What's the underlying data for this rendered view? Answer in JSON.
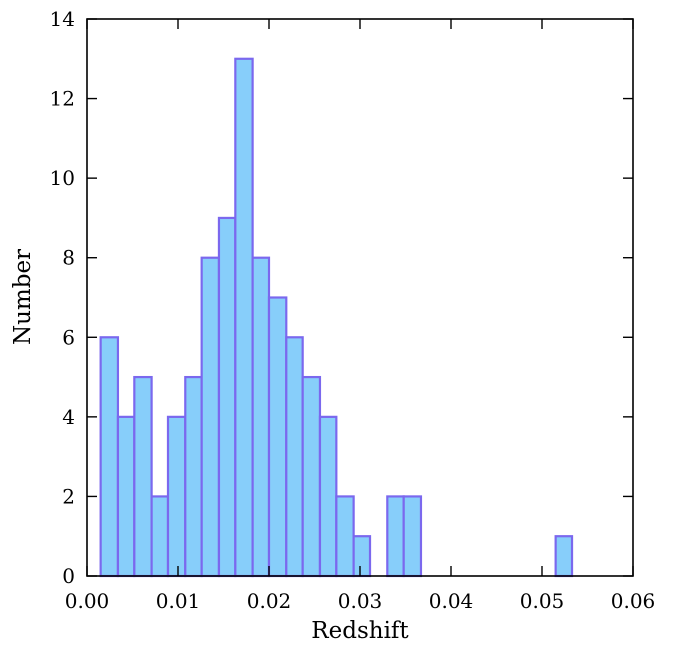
{
  "chart_data": {
    "type": "bar",
    "xlabel": "Redshift",
    "ylabel": "Number",
    "xlim": [
      0,
      0.06
    ],
    "ylim": [
      0,
      14
    ],
    "xticks": [
      "0.00",
      "0.01",
      "0.02",
      "0.03",
      "0.04",
      "0.05",
      "0.06"
    ],
    "yticks": [
      "0",
      "2",
      "4",
      "6",
      "8",
      "10",
      "12",
      "14"
    ],
    "grid": false,
    "colors": {
      "fill": "#87cefa",
      "edge": "#7b68ee"
    },
    "bins": [
      {
        "x0": 0.0015,
        "x1": 0.0034,
        "value": 6
      },
      {
        "x0": 0.0034,
        "x1": 0.0052,
        "value": 4
      },
      {
        "x0": 0.0052,
        "x1": 0.0071,
        "value": 5
      },
      {
        "x0": 0.0071,
        "x1": 0.0089,
        "value": 2
      },
      {
        "x0": 0.0089,
        "x1": 0.0108,
        "value": 4
      },
      {
        "x0": 0.0108,
        "x1": 0.0126,
        "value": 5
      },
      {
        "x0": 0.0126,
        "x1": 0.0145,
        "value": 8
      },
      {
        "x0": 0.0145,
        "x1": 0.0163,
        "value": 9
      },
      {
        "x0": 0.0163,
        "x1": 0.0182,
        "value": 13
      },
      {
        "x0": 0.0182,
        "x1": 0.02,
        "value": 8
      },
      {
        "x0": 0.02,
        "x1": 0.0219,
        "value": 7
      },
      {
        "x0": 0.0219,
        "x1": 0.0237,
        "value": 6
      },
      {
        "x0": 0.0237,
        "x1": 0.0256,
        "value": 5
      },
      {
        "x0": 0.0256,
        "x1": 0.0274,
        "value": 4
      },
      {
        "x0": 0.0274,
        "x1": 0.0293,
        "value": 2
      },
      {
        "x0": 0.0293,
        "x1": 0.0311,
        "value": 1
      },
      {
        "x0": 0.0311,
        "x1": 0.033,
        "value": 0
      },
      {
        "x0": 0.033,
        "x1": 0.0348,
        "value": 2
      },
      {
        "x0": 0.0348,
        "x1": 0.0367,
        "value": 2
      },
      {
        "x0": 0.0515,
        "x1": 0.0533,
        "value": 1
      }
    ]
  }
}
